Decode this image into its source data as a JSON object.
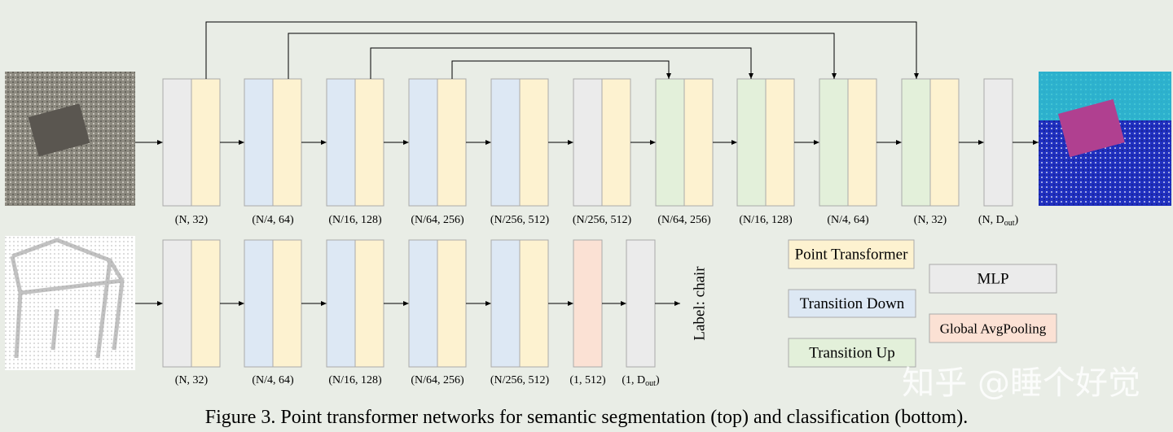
{
  "top": {
    "blocks": [
      {
        "colors": [
          "#ebebeb",
          "#fdf2d0"
        ],
        "label": "(N, 32)"
      },
      {
        "colors": [
          "#dde8f4",
          "#fdf2d0"
        ],
        "label": "(N/4, 64)"
      },
      {
        "colors": [
          "#dde8f4",
          "#fdf2d0"
        ],
        "label": "(N/16, 128)"
      },
      {
        "colors": [
          "#dde8f4",
          "#fdf2d0"
        ],
        "label": "(N/64, 256)"
      },
      {
        "colors": [
          "#dde8f4",
          "#fdf2d0"
        ],
        "label": "(N/256, 512)"
      },
      {
        "colors": [
          "#ebebeb",
          "#fdf2d0"
        ],
        "label": "(N/256, 512)"
      },
      {
        "colors": [
          "#e3f0da",
          "#fdf2d0"
        ],
        "label": "(N/64, 256)"
      },
      {
        "colors": [
          "#e3f0da",
          "#fdf2d0"
        ],
        "label": "(N/16, 128)"
      },
      {
        "colors": [
          "#e3f0da",
          "#fdf2d0"
        ],
        "label": "(N/4, 64)"
      },
      {
        "colors": [
          "#e3f0da",
          "#fdf2d0"
        ],
        "label": "(N, 32)"
      },
      {
        "colors": [
          "#ebebeb"
        ],
        "label": "(N, D",
        "sub": "out",
        "end": ")"
      }
    ]
  },
  "bottom": {
    "blocks": [
      {
        "colors": [
          "#ebebeb",
          "#fdf2d0"
        ],
        "label": "(N, 32)"
      },
      {
        "colors": [
          "#dde8f4",
          "#fdf2d0"
        ],
        "label": "(N/4, 64)"
      },
      {
        "colors": [
          "#dde8f4",
          "#fdf2d0"
        ],
        "label": "(N/16, 128)"
      },
      {
        "colors": [
          "#dde8f4",
          "#fdf2d0"
        ],
        "label": "(N/64, 256)"
      },
      {
        "colors": [
          "#dde8f4",
          "#fdf2d0"
        ],
        "label": "(N/256, 512)"
      },
      {
        "colors": [
          "#fbe1d4"
        ],
        "label": "(1, 512)"
      },
      {
        "colors": [
          "#ebebeb"
        ],
        "label": "(1, D",
        "sub": "out",
        "end": ")"
      }
    ],
    "output": "Label: chair"
  },
  "legend": [
    {
      "label": "Point Transformer",
      "color": "#fdf2d0"
    },
    {
      "label": "Transition Down",
      "color": "#dde8f4"
    },
    {
      "label": "Transition Up",
      "color": "#e3f0da"
    },
    {
      "label": "MLP",
      "color": "#ebebeb"
    },
    {
      "label": "Global AvgPooling",
      "color": "#fbe1d4"
    }
  ],
  "caption": "Figure 3. Point transformer networks for semantic segmentation (top) and classification (bottom).",
  "watermark": "知乎 @睡个好觉"
}
